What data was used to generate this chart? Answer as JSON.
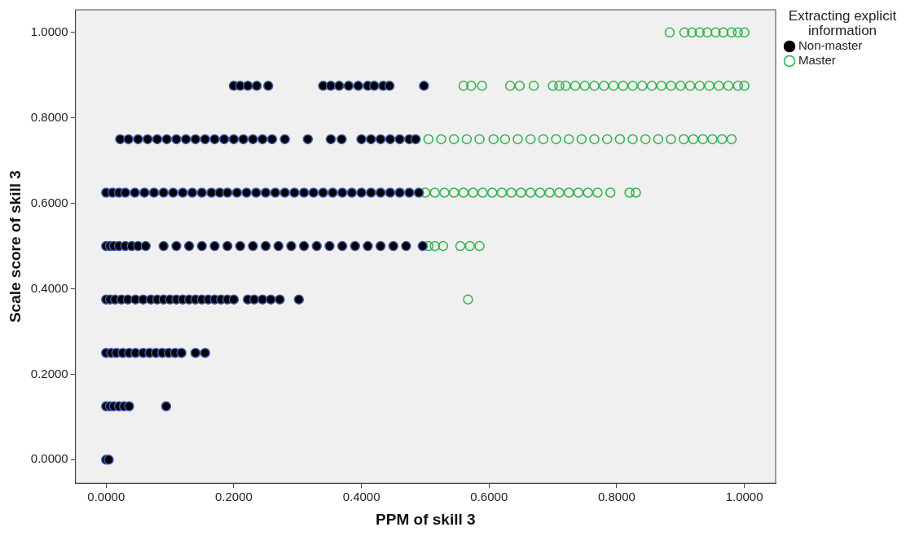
{
  "chart_data": {
    "type": "scatter",
    "xlabel": "PPM of skill 3",
    "ylabel": "Scale score of skill 3",
    "legend_title": "Extracting explicit information",
    "legend": "top right",
    "marker": "circle",
    "grid": false,
    "xlim": [
      -0.048,
      1.049
    ],
    "ylim": [
      -0.055,
      1.053
    ],
    "xticks": [
      {
        "value": 0,
        "label": "0.0000"
      },
      {
        "value": 0.2,
        "label": "0.2000"
      },
      {
        "value": 0.4,
        "label": "0.4000"
      },
      {
        "value": 0.6,
        "label": "0.6000"
      },
      {
        "value": 0.8,
        "label": "0.8000"
      },
      {
        "value": 1,
        "label": "1.0000"
      }
    ],
    "yticks": [
      {
        "value": 0,
        "label": "0.0000"
      },
      {
        "value": 0.2,
        "label": "0.2000"
      },
      {
        "value": 0.4,
        "label": "0.4000"
      },
      {
        "value": 0.6,
        "label": "0.6000"
      },
      {
        "value": 0.8,
        "label": "0.8000"
      },
      {
        "value": 1,
        "label": "1.0000"
      }
    ],
    "series": [
      {
        "name": "Non-master",
        "color": "#000000",
        "x": [
          0,
          0.004,
          0,
          0.006,
          0.012,
          0.02,
          0.028,
          0.036,
          0.094,
          0,
          0.008,
          0.016,
          0.026,
          0.036,
          0.046,
          0.058,
          0.068,
          0.078,
          0.088,
          0.098,
          0.108,
          0.118,
          0.14,
          0.155,
          0,
          0.006,
          0.014,
          0.024,
          0.034,
          0.046,
          0.058,
          0.07,
          0.08,
          0.09,
          0.1,
          0.11,
          0.12,
          0.13,
          0.14,
          0.15,
          0.16,
          0.17,
          0.18,
          0.19,
          0.2,
          0.222,
          0.232,
          0.245,
          0.258,
          0.272,
          0.302,
          0,
          0.006,
          0.012,
          0.02,
          0.03,
          0.04,
          0.05,
          0.062,
          0.09,
          0.11,
          0.13,
          0.15,
          0.17,
          0.19,
          0.21,
          0.23,
          0.25,
          0.27,
          0.29,
          0.31,
          0.33,
          0.35,
          0.37,
          0.39,
          0.41,
          0.43,
          0.45,
          0.47,
          0.496,
          0,
          0.01,
          0.02,
          0.03,
          0.045,
          0.06,
          0.075,
          0.09,
          0.105,
          0.12,
          0.135,
          0.15,
          0.165,
          0.178,
          0.19,
          0.205,
          0.22,
          0.235,
          0.25,
          0.265,
          0.28,
          0.295,
          0.31,
          0.325,
          0.34,
          0.355,
          0.37,
          0.385,
          0.4,
          0.415,
          0.43,
          0.445,
          0.46,
          0.475,
          0.49,
          0.022,
          0.035,
          0.05,
          0.065,
          0.08,
          0.095,
          0.11,
          0.125,
          0.14,
          0.155,
          0.17,
          0.185,
          0.2,
          0.215,
          0.23,
          0.245,
          0.26,
          0.28,
          0.316,
          0.352,
          0.369,
          0.4,
          0.415,
          0.43,
          0.445,
          0.46,
          0.475,
          0.485,
          0.2,
          0.21,
          0.222,
          0.236,
          0.254,
          0.34,
          0.352,
          0.365,
          0.38,
          0.395,
          0.41,
          0.42,
          0.434,
          0.444,
          0.498
        ],
        "values": [
          0,
          0,
          0.125,
          0.125,
          0.125,
          0.125,
          0.125,
          0.125,
          0.125,
          0.25,
          0.25,
          0.25,
          0.25,
          0.25,
          0.25,
          0.25,
          0.25,
          0.25,
          0.25,
          0.25,
          0.25,
          0.25,
          0.25,
          0.25,
          0.375,
          0.375,
          0.375,
          0.375,
          0.375,
          0.375,
          0.375,
          0.375,
          0.375,
          0.375,
          0.375,
          0.375,
          0.375,
          0.375,
          0.375,
          0.375,
          0.375,
          0.375,
          0.375,
          0.375,
          0.375,
          0.375,
          0.375,
          0.375,
          0.375,
          0.375,
          0.375,
          0.5,
          0.5,
          0.5,
          0.5,
          0.5,
          0.5,
          0.5,
          0.5,
          0.5,
          0.5,
          0.5,
          0.5,
          0.5,
          0.5,
          0.5,
          0.5,
          0.5,
          0.5,
          0.5,
          0.5,
          0.5,
          0.5,
          0.5,
          0.5,
          0.5,
          0.5,
          0.5,
          0.5,
          0.5,
          0.625,
          0.625,
          0.625,
          0.625,
          0.625,
          0.625,
          0.625,
          0.625,
          0.625,
          0.625,
          0.625,
          0.625,
          0.625,
          0.625,
          0.625,
          0.625,
          0.625,
          0.625,
          0.625,
          0.625,
          0.625,
          0.625,
          0.625,
          0.625,
          0.625,
          0.625,
          0.625,
          0.625,
          0.625,
          0.625,
          0.625,
          0.625,
          0.625,
          0.625,
          0.625,
          0.75,
          0.75,
          0.75,
          0.75,
          0.75,
          0.75,
          0.75,
          0.75,
          0.75,
          0.75,
          0.75,
          0.75,
          0.75,
          0.75,
          0.75,
          0.75,
          0.75,
          0.75,
          0.75,
          0.75,
          0.75,
          0.75,
          0.75,
          0.75,
          0.75,
          0.75,
          0.75,
          0.75,
          0.875,
          0.875,
          0.875,
          0.875,
          0.875,
          0.875,
          0.875,
          0.875,
          0.875,
          0.875,
          0.875,
          0.875,
          0.875,
          0.875,
          0.875
        ]
      },
      {
        "name": "Master",
        "color": "#2db34a",
        "x": [
          0.567,
          0.505,
          0.515,
          0.528,
          0.555,
          0.57,
          0.585,
          0.5,
          0.515,
          0.53,
          0.545,
          0.56,
          0.575,
          0.59,
          0.605,
          0.62,
          0.635,
          0.65,
          0.665,
          0.68,
          0.695,
          0.71,
          0.725,
          0.74,
          0.755,
          0.77,
          0.79,
          0.82,
          0.83,
          0.505,
          0.525,
          0.545,
          0.565,
          0.585,
          0.607,
          0.625,
          0.645,
          0.665,
          0.685,
          0.705,
          0.725,
          0.745,
          0.765,
          0.785,
          0.805,
          0.825,
          0.845,
          0.865,
          0.885,
          0.905,
          0.92,
          0.935,
          0.95,
          0.965,
          0.98,
          0.56,
          0.572,
          0.589,
          0.633,
          0.648,
          0.67,
          0.7,
          0.71,
          0.72,
          0.735,
          0.75,
          0.765,
          0.78,
          0.795,
          0.81,
          0.825,
          0.84,
          0.855,
          0.87,
          0.885,
          0.9,
          0.915,
          0.93,
          0.945,
          0.96,
          0.975,
          0.99,
          1,
          0.883,
          0.906,
          0.918,
          0.93,
          0.942,
          0.955,
          0.967,
          0.98,
          0.99,
          1
        ],
        "values": [
          0.375,
          0.5,
          0.5,
          0.5,
          0.5,
          0.5,
          0.5,
          0.625,
          0.625,
          0.625,
          0.625,
          0.625,
          0.625,
          0.625,
          0.625,
          0.625,
          0.625,
          0.625,
          0.625,
          0.625,
          0.625,
          0.625,
          0.625,
          0.625,
          0.625,
          0.625,
          0.625,
          0.625,
          0.625,
          0.75,
          0.75,
          0.75,
          0.75,
          0.75,
          0.75,
          0.75,
          0.75,
          0.75,
          0.75,
          0.75,
          0.75,
          0.75,
          0.75,
          0.75,
          0.75,
          0.75,
          0.75,
          0.75,
          0.75,
          0.75,
          0.75,
          0.75,
          0.75,
          0.75,
          0.75,
          0.875,
          0.875,
          0.875,
          0.875,
          0.875,
          0.875,
          0.875,
          0.875,
          0.875,
          0.875,
          0.875,
          0.875,
          0.875,
          0.875,
          0.875,
          0.875,
          0.875,
          0.875,
          0.875,
          0.875,
          0.875,
          0.875,
          0.875,
          0.875,
          0.875,
          0.875,
          0.875,
          0.875,
          1,
          1,
          1,
          1,
          1,
          1,
          1,
          1,
          1,
          1
        ]
      }
    ]
  }
}
